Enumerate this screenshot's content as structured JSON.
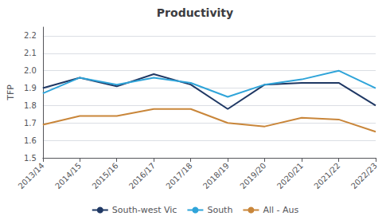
{
  "chart_data": {
    "type": "line",
    "title": "Productivity",
    "ylabel": "TFP",
    "categories": [
      "2013/14",
      "2014/15",
      "2015/16",
      "2016/17",
      "2017/18",
      "2018/19",
      "2019/20",
      "2020/21",
      "2021/22",
      "2022/23"
    ],
    "series": [
      {
        "name": "South-west Vic",
        "color": "#1f3864",
        "values": [
          1.9,
          1.96,
          1.91,
          1.98,
          1.92,
          1.78,
          1.92,
          1.93,
          1.93,
          1.8
        ]
      },
      {
        "name": "South",
        "color": "#2fa4d9",
        "values": [
          1.87,
          1.96,
          1.92,
          1.96,
          1.93,
          1.85,
          1.92,
          1.95,
          2.0,
          1.9
        ]
      },
      {
        "name": "All - Aus",
        "color": "#c9863a",
        "values": [
          1.69,
          1.74,
          1.74,
          1.78,
          1.78,
          1.7,
          1.68,
          1.73,
          1.72,
          1.65
        ]
      }
    ],
    "ylim": [
      1.5,
      2.25
    ],
    "yticks": [
      1.5,
      1.6,
      1.7,
      1.8,
      1.9,
      {
        "value": 2.0,
        "label": "2.0"
      },
      2.1,
      2.2
    ],
    "grid": true,
    "legend": "bottom"
  }
}
